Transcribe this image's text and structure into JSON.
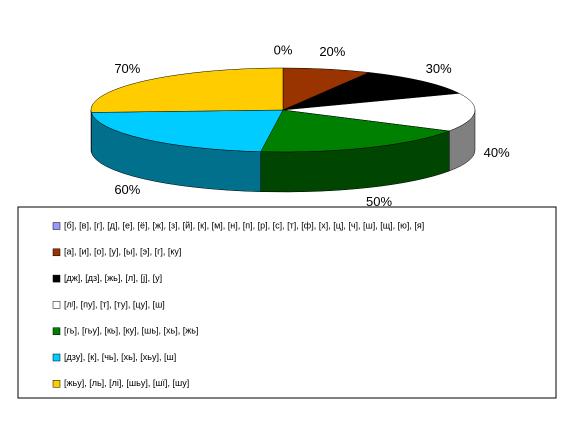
{
  "chart_data": {
    "type": "pie",
    "categories": [
      "[б], [в], [г], [д], [е], [ё], [ж], [з], [й], [к], [м], [н], [п], [р], [с], [т], [ф], [х], [ц], [ч], [ш], [щ], [ю], [я]",
      "[а], [и], [о], [у], [ы], [э], [г], [ку]",
      "[дж], [дз], [жь], [л], [ј], [у]",
      "[лʲ], [пу], [т], [ту], [цу], [ш]",
      "[гь], [гьу], [кь], [ку], [шь], [хь], [жь]",
      "[дзу], [к], [чь], [хь], [хьу], [ш]",
      "[жьу], [ль], [лі], [шьу], [шї], [шу]"
    ],
    "values": [
      0,
      20,
      30,
      40,
      50,
      60,
      70
    ],
    "value_labels": [
      "0%",
      "20%",
      "30%",
      "40%",
      "50%",
      "60%",
      "70%"
    ],
    "colors": [
      "#9999ff",
      "#993300",
      "#000000",
      "#ffffff",
      "#008000",
      "#00ccff",
      "#ffcc00"
    ]
  }
}
